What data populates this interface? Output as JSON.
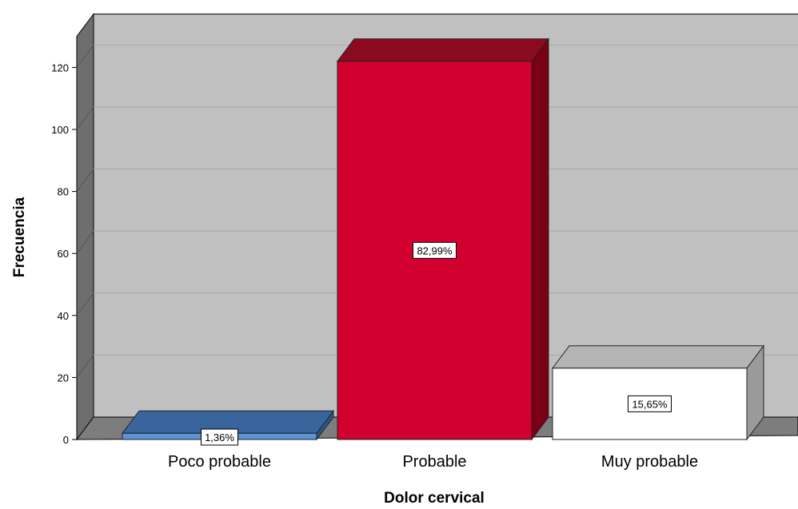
{
  "chart_data": {
    "type": "bar",
    "title": "",
    "xlabel": "Dolor cervical",
    "ylabel": "Frecuencia",
    "categories": [
      "Poco probable",
      "Probable",
      "Muy probable"
    ],
    "values": [
      2,
      122,
      23
    ],
    "data_labels": [
      "1,36%",
      "82,99%",
      "15,65%"
    ],
    "bar_colors": [
      {
        "front": "#5b93d6",
        "top": "#3a659c",
        "side": "#2e5586"
      },
      {
        "front": "#d2002e",
        "top": "#8c0a1e",
        "side": "#7a0015"
      },
      {
        "front": "#ffffff",
        "top": "#b4b4b4",
        "side": "#9a9a9a"
      }
    ],
    "yticks": [
      0,
      20,
      40,
      60,
      80,
      100,
      120
    ],
    "ylim": [
      0,
      130
    ],
    "grid": true,
    "three_d": true,
    "plot_background": "#c0c0c0",
    "wall_side_color": "#6e6e6e",
    "floor_color": "#7d7d7d"
  }
}
